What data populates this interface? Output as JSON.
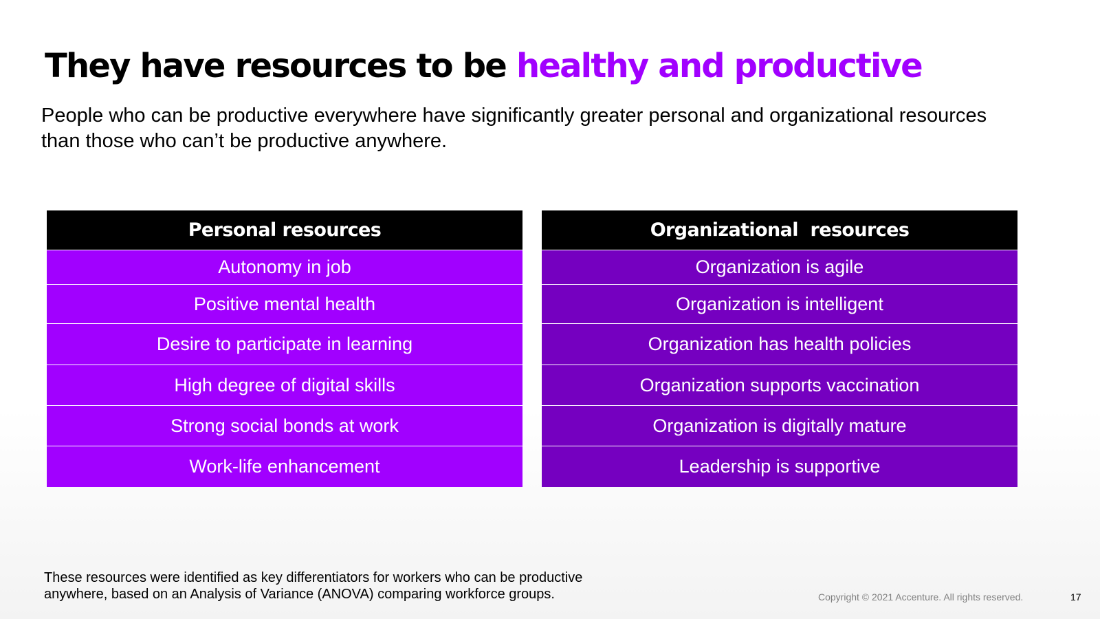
{
  "slide": {
    "title_main": "They have resources to be ",
    "title_accent": "healthy and productive",
    "subtitle": "People who can be productive everywhere have significantly greater personal and organizational resources than those who can’t be productive anywhere.",
    "colors": {
      "accent": "#a100ff",
      "personal_row": "#a100ff",
      "organizational_row": "#7500c0",
      "header": "#000000"
    }
  },
  "personal_table": {
    "header": "Personal resources",
    "rows": [
      "Autonomy in job",
      "Positive mental health",
      "Desire to participate in learning",
      "High degree of digital skills",
      "Strong social bonds at work",
      "Work-life enhancement"
    ]
  },
  "organizational_table": {
    "header": "Organizational  resources",
    "rows": [
      "Organization is agile",
      "Organization is intelligent",
      "Organization has health policies",
      "Organization supports vaccination",
      "Organization is digitally mature",
      "Leadership is supportive"
    ]
  },
  "footer": {
    "footnote": "These resources were identified as key differentiators for workers who can be productive anywhere, based on an Analysis of Variance (ANOVA) comparing workforce groups.",
    "copyright": "Copyright © 2021 Accenture. All rights reserved.",
    "page_number": "17"
  }
}
